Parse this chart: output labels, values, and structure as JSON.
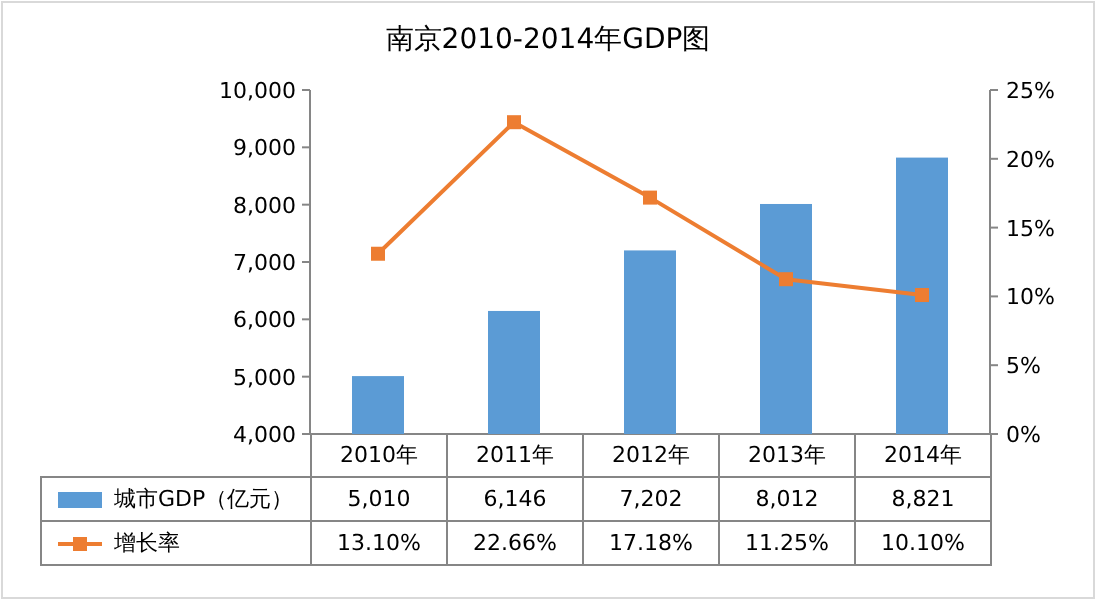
{
  "chart_data": {
    "type": "bar",
    "title": "南京2010-2014年GDP图",
    "categories": [
      "2010年",
      "2011年",
      "2012年",
      "2013年",
      "2014年"
    ],
    "series": [
      {
        "name": "城市GDP（亿元）",
        "color": "#5b9bd5",
        "values": [
          5010,
          6146,
          7202,
          8012,
          8821
        ],
        "value_labels": [
          "5,010",
          "6,146",
          "7,202",
          "8,012",
          "8,821"
        ]
      },
      {
        "name": "增长率",
        "type": "line",
        "axis": "y2",
        "color": "#ed7d31",
        "marker": "square",
        "values": [
          13.1,
          22.66,
          17.18,
          11.25,
          10.1
        ],
        "value_labels": [
          "13.10%",
          "22.66%",
          "17.18%",
          "11.25%",
          "10.10%"
        ]
      }
    ],
    "ylim": [
      4000,
      10000
    ],
    "yticks": [
      {
        "value": 4000,
        "label": "4,000"
      },
      {
        "value": 5000,
        "label": "5,000"
      },
      {
        "value": 6000,
        "label": "6,000"
      },
      {
        "value": 7000,
        "label": "7,000"
      },
      {
        "value": 8000,
        "label": "8,000"
      },
      {
        "value": 9000,
        "label": "9,000"
      },
      {
        "value": 10000,
        "label": "10,000"
      }
    ],
    "y2lim": [
      0,
      25
    ],
    "y2ticks": [
      {
        "value": 0,
        "label": "0%"
      },
      {
        "value": 5,
        "label": "5%"
      },
      {
        "value": 10,
        "label": "10%"
      },
      {
        "value": 15,
        "label": "15%"
      },
      {
        "value": 20,
        "label": "20%"
      },
      {
        "value": 25,
        "label": "25%"
      }
    ],
    "legend": "bottom"
  }
}
